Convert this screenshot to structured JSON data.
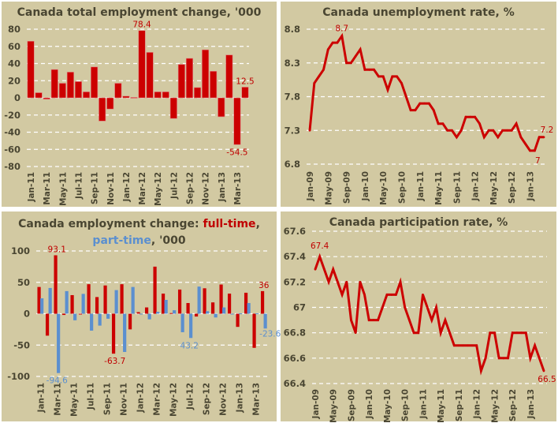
{
  "colors": {
    "panel_bg": "#d2c9a2",
    "full_time": "#cc0000",
    "part_time": "#5b8fcf",
    "line": "#cc0000",
    "label_red": "#c00000",
    "label_blue": "#5b8fcf",
    "axis_text": "#4a4632"
  },
  "chart_data": [
    {
      "id": "total-employment",
      "type": "bar",
      "title": "Canada total employment change, '000",
      "xlabel": "",
      "ylabel": "",
      "ylim": [
        -80,
        80
      ],
      "yticks": [
        80,
        60,
        40,
        20,
        0,
        -20,
        -40,
        -60,
        -80
      ],
      "grid": true,
      "categories": [
        "Jan-11",
        "Feb-11",
        "Mar-11",
        "Apr-11",
        "May-11",
        "Jun-11",
        "Jul-11",
        "Aug-11",
        "Sep-11",
        "Oct-11",
        "Nov-11",
        "Dec-11",
        "Jan-12",
        "Feb-12",
        "Mar-12",
        "Apr-12",
        "May-12",
        "Jun-12",
        "Jul-12",
        "Aug-12",
        "Sep-12",
        "Oct-12",
        "Nov-12",
        "Dec-12",
        "Jan-13",
        "Feb-13",
        "Mar-13",
        "Apr-13"
      ],
      "xtick_labels": [
        "Jan-11",
        "Mar-11",
        "May-11",
        "Jul-11",
        "Sep-11",
        "Nov-11",
        "Jan-12",
        "Mar-12",
        "May-12",
        "Jul-12",
        "Sep-12",
        "Nov-12",
        "Jan-13",
        "Mar-13"
      ],
      "values": [
        66,
        6,
        -1.5,
        33,
        17,
        30,
        19,
        7,
        36,
        -27,
        -13,
        17,
        2,
        0.5,
        78.4,
        53,
        7,
        7,
        -24,
        39,
        46,
        12,
        56,
        31,
        -22,
        50,
        -54.5,
        12.5
      ],
      "annotations": [
        {
          "category": "Mar-12",
          "text": "78.4"
        },
        {
          "category": "Mar-13",
          "text": "-54.5"
        },
        {
          "category": "Apr-13",
          "text": "12.5"
        }
      ]
    },
    {
      "id": "unemployment-rate",
      "type": "line",
      "title": "Canada unemployment rate, %",
      "xlabel": "",
      "ylabel": "",
      "ylim": [
        6.8,
        8.8
      ],
      "yticks": [
        8.8,
        8.3,
        7.8,
        7.3,
        6.8
      ],
      "grid": true,
      "x": [
        "Jan-09",
        "Feb-09",
        "Mar-09",
        "Apr-09",
        "May-09",
        "Jun-09",
        "Jul-09",
        "Aug-09",
        "Sep-09",
        "Oct-09",
        "Nov-09",
        "Dec-09",
        "Jan-10",
        "Feb-10",
        "Mar-10",
        "Apr-10",
        "May-10",
        "Jun-10",
        "Jul-10",
        "Aug-10",
        "Sep-10",
        "Oct-10",
        "Nov-10",
        "Dec-10",
        "Jan-11",
        "Feb-11",
        "Mar-11",
        "Apr-11",
        "May-11",
        "Jun-11",
        "Jul-11",
        "Aug-11",
        "Sep-11",
        "Oct-11",
        "Nov-11",
        "Dec-11",
        "Jan-12",
        "Feb-12",
        "Mar-12",
        "Apr-12",
        "May-12",
        "Jun-12",
        "Jul-12",
        "Aug-12",
        "Sep-12",
        "Oct-12",
        "Nov-12",
        "Dec-12",
        "Jan-13",
        "Feb-13",
        "Mar-13",
        "Apr-13"
      ],
      "xtick_labels": [
        "Jan-09",
        "May-09",
        "Sep-09",
        "Jan-10",
        "May-10",
        "Sep-10",
        "Jan-11",
        "May-11",
        "Sep-11",
        "Jan-12",
        "May-12",
        "Sep-12",
        "Jan-13"
      ],
      "values": [
        7.3,
        8.0,
        8.1,
        8.2,
        8.5,
        8.6,
        8.6,
        8.7,
        8.3,
        8.3,
        8.4,
        8.5,
        8.2,
        8.2,
        8.2,
        8.1,
        8.1,
        7.9,
        8.1,
        8.1,
        8.0,
        7.8,
        7.6,
        7.6,
        7.7,
        7.7,
        7.7,
        7.6,
        7.4,
        7.4,
        7.3,
        7.3,
        7.2,
        7.3,
        7.5,
        7.5,
        7.5,
        7.4,
        7.2,
        7.3,
        7.3,
        7.2,
        7.3,
        7.3,
        7.3,
        7.4,
        7.2,
        7.1,
        7.0,
        7.0,
        7.2,
        7.2
      ],
      "annotations": [
        {
          "x": "Aug-09",
          "text": "8.7"
        },
        {
          "x": "Feb-13",
          "text": "7"
        },
        {
          "x": "Apr-13",
          "text": "7.2"
        }
      ]
    },
    {
      "id": "ft-pt-employment",
      "type": "bar",
      "title": "Canada employment change: full-time, part-time, '000",
      "title_parts": {
        "prefix": "Canada employment change: ",
        "full_time": "full-time",
        "sep": ",",
        "part_time": "part-time",
        "suffix": ", '000"
      },
      "xlabel": "",
      "ylabel": "",
      "ylim": [
        -100,
        100
      ],
      "yticks": [
        100,
        50,
        0,
        -50,
        -100
      ],
      "grid": true,
      "categories": [
        "Jan-11",
        "Feb-11",
        "Mar-11",
        "Apr-11",
        "May-11",
        "Jun-11",
        "Jul-11",
        "Aug-11",
        "Sep-11",
        "Oct-11",
        "Nov-11",
        "Dec-11",
        "Jan-12",
        "Feb-12",
        "Mar-12",
        "Apr-12",
        "May-12",
        "Jun-12",
        "Jul-12",
        "Aug-12",
        "Sep-12",
        "Oct-12",
        "Nov-12",
        "Dec-12",
        "Jan-13",
        "Feb-13",
        "Mar-13",
        "Apr-13"
      ],
      "xtick_labels": [
        "Jan-11",
        "Mar-11",
        "May-11",
        "Jul-11",
        "Sep-11",
        "Nov-11",
        "Jan-12",
        "Mar-12",
        "May-12",
        "Jul-12",
        "Sep-12",
        "Nov-12",
        "Jan-13",
        "Mar-13"
      ],
      "series": [
        {
          "name": "full-time",
          "values": [
            42.6,
            -35,
            93.1,
            -2,
            29.6,
            -1,
            47,
            26.5,
            45,
            -63.7,
            47,
            -25,
            2.5,
            10,
            75,
            32,
            1,
            38.5,
            17,
            -4.5,
            40.5,
            18,
            46.5,
            32,
            -21,
            33.4,
            -54.4,
            36
          ]
        },
        {
          "name": "part-time",
          "values": [
            24.5,
            41,
            -94.6,
            36,
            -10.5,
            31.6,
            -27,
            -19,
            -8,
            37.6,
            -61,
            42.6,
            -1,
            -9,
            3,
            22,
            5.5,
            -29.5,
            -38.7,
            43.2,
            4,
            -6,
            10,
            0,
            0.5,
            17,
            0.5,
            -23.6
          ]
        }
      ],
      "annotations": [
        {
          "series": "full-time",
          "category": "Mar-11",
          "text": "93.1"
        },
        {
          "series": "part-time",
          "category": "Mar-11",
          "text": "-94.6"
        },
        {
          "series": "full-time",
          "category": "Oct-11",
          "text": "-63.7"
        },
        {
          "series": "part-time",
          "category": "Jul-12",
          "text": "43.2"
        },
        {
          "series": "full-time",
          "category": "Apr-13",
          "text": "36"
        },
        {
          "series": "part-time",
          "category": "Apr-13",
          "text": "-23.6"
        }
      ]
    },
    {
      "id": "participation-rate",
      "type": "line",
      "title": "Canada participation rate, %",
      "xlabel": "",
      "ylabel": "",
      "ylim": [
        66.4,
        67.6
      ],
      "yticks": [
        67.6,
        67.4,
        67.2,
        67,
        66.8,
        66.6,
        66.4
      ],
      "grid": true,
      "x": [
        "Jan-09",
        "Feb-09",
        "Mar-09",
        "Apr-09",
        "May-09",
        "Jun-09",
        "Jul-09",
        "Aug-09",
        "Sep-09",
        "Oct-09",
        "Nov-09",
        "Dec-09",
        "Jan-10",
        "Feb-10",
        "Mar-10",
        "Apr-10",
        "May-10",
        "Jun-10",
        "Jul-10",
        "Aug-10",
        "Sep-10",
        "Oct-10",
        "Nov-10",
        "Dec-10",
        "Jan-11",
        "Feb-11",
        "Mar-11",
        "Apr-11",
        "May-11",
        "Jun-11",
        "Jul-11",
        "Aug-11",
        "Sep-11",
        "Oct-11",
        "Nov-11",
        "Dec-11",
        "Jan-12",
        "Feb-12",
        "Mar-12",
        "Apr-12",
        "May-12",
        "Jun-12",
        "Jul-12",
        "Aug-12",
        "Sep-12",
        "Oct-12",
        "Nov-12",
        "Dec-12",
        "Jan-13",
        "Feb-13",
        "Mar-13",
        "Apr-13"
      ],
      "xtick_labels": [
        "Jan-09",
        "May-09",
        "Sep-09",
        "Jan-10",
        "May-10",
        "Sep-10",
        "Jan-11",
        "May-11",
        "Sep-11",
        "Jan-12",
        "May-12",
        "Sep-12",
        "Jan-13"
      ],
      "values": [
        67.3,
        67.4,
        67.3,
        67.2,
        67.3,
        67.2,
        67.1,
        67.2,
        66.9,
        66.8,
        67.2,
        67.1,
        66.9,
        66.9,
        66.9,
        67.0,
        67.1,
        67.1,
        67.1,
        67.2,
        67.0,
        66.9,
        66.8,
        66.8,
        67.1,
        67.0,
        66.9,
        67.0,
        66.8,
        66.9,
        66.8,
        66.7,
        66.7,
        66.7,
        66.7,
        66.7,
        66.7,
        66.5,
        66.6,
        66.8,
        66.8,
        66.6,
        66.6,
        66.6,
        66.8,
        66.8,
        66.8,
        66.8,
        66.6,
        66.7,
        66.6,
        66.5
      ],
      "annotations": [
        {
          "x": "Feb-09",
          "text": "67.4"
        },
        {
          "x": "Apr-13",
          "text": "66.5"
        }
      ]
    }
  ]
}
